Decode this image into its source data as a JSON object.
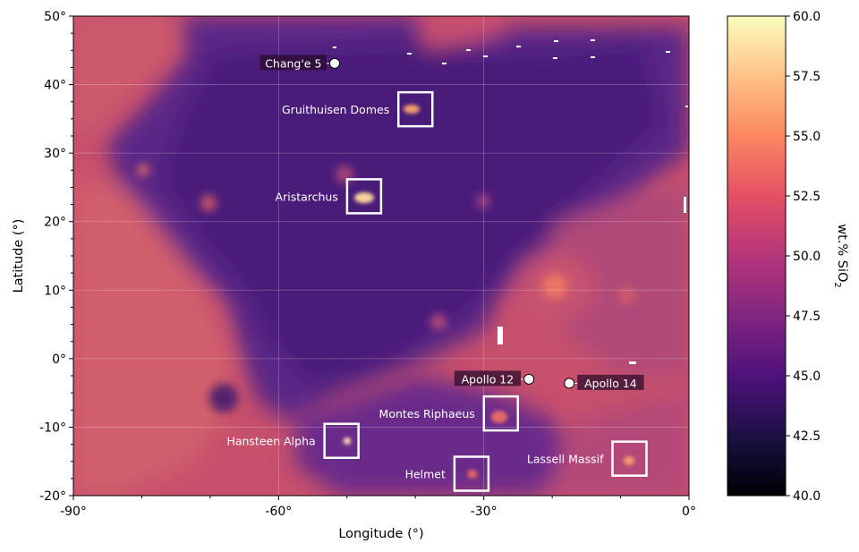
{
  "map": {
    "xlabel": "Longitude (°)",
    "ylabel": "Latitude (°)",
    "xlim": [
      -90,
      0
    ],
    "ylim": [
      -20,
      50
    ],
    "x_ticks": [
      {
        "value": -90,
        "label": "-90°"
      },
      {
        "value": -60,
        "label": "-60°"
      },
      {
        "value": -30,
        "label": "-30°"
      },
      {
        "value": 0,
        "label": "0°"
      }
    ],
    "y_ticks": [
      {
        "value": 50,
        "label": "50°"
      },
      {
        "value": 40,
        "label": "40°"
      },
      {
        "value": 30,
        "label": "30°"
      },
      {
        "value": 20,
        "label": "20°"
      },
      {
        "value": 10,
        "label": "10°"
      },
      {
        "value": 0,
        "label": "0°"
      },
      {
        "value": -10,
        "label": "-10°"
      },
      {
        "value": -20,
        "label": "-20°"
      }
    ],
    "grid": true,
    "regions": [
      {
        "name": "Gruithuisen Domes",
        "lon": -40.0,
        "lat": 36.4,
        "label_side": "left"
      },
      {
        "name": "Aristarchus",
        "lon": -47.5,
        "lat": 23.7,
        "label_side": "left"
      },
      {
        "name": "Montes Riphaeus",
        "lon": -27.5,
        "lat": -8.0,
        "label_side": "left"
      },
      {
        "name": "Hansteen Alpha",
        "lon": -50.8,
        "lat": -12.0,
        "label_side": "left"
      },
      {
        "name": "Helmet",
        "lon": -31.8,
        "lat": -16.8,
        "label_side": "left"
      },
      {
        "name": "Lassell Massif",
        "lon": -8.7,
        "lat": -14.6,
        "label_side": "left"
      }
    ],
    "landing_sites": [
      {
        "name": "Chang'e 5",
        "lon": -51.8,
        "lat": 43.1,
        "label_side": "left"
      },
      {
        "name": "Apollo 12",
        "lon": -23.4,
        "lat": -3.0,
        "label_side": "left"
      },
      {
        "name": "Apollo 14",
        "lon": -17.5,
        "lat": -3.6,
        "label_side": "right"
      }
    ]
  },
  "colorbar": {
    "label_main": "wt.% SiO",
    "label_sub": "2",
    "range": [
      40.0,
      60.0
    ],
    "ticks": [
      "40.0",
      "42.5",
      "45.0",
      "47.5",
      "50.0",
      "52.5",
      "55.0",
      "57.5",
      "60.0"
    ],
    "colormap": "magma",
    "stops": [
      "#000004",
      "#1c1044",
      "#4f127b",
      "#812581",
      "#b5367a",
      "#e55064",
      "#fb8761",
      "#fec287",
      "#fcfdbf"
    ]
  }
}
